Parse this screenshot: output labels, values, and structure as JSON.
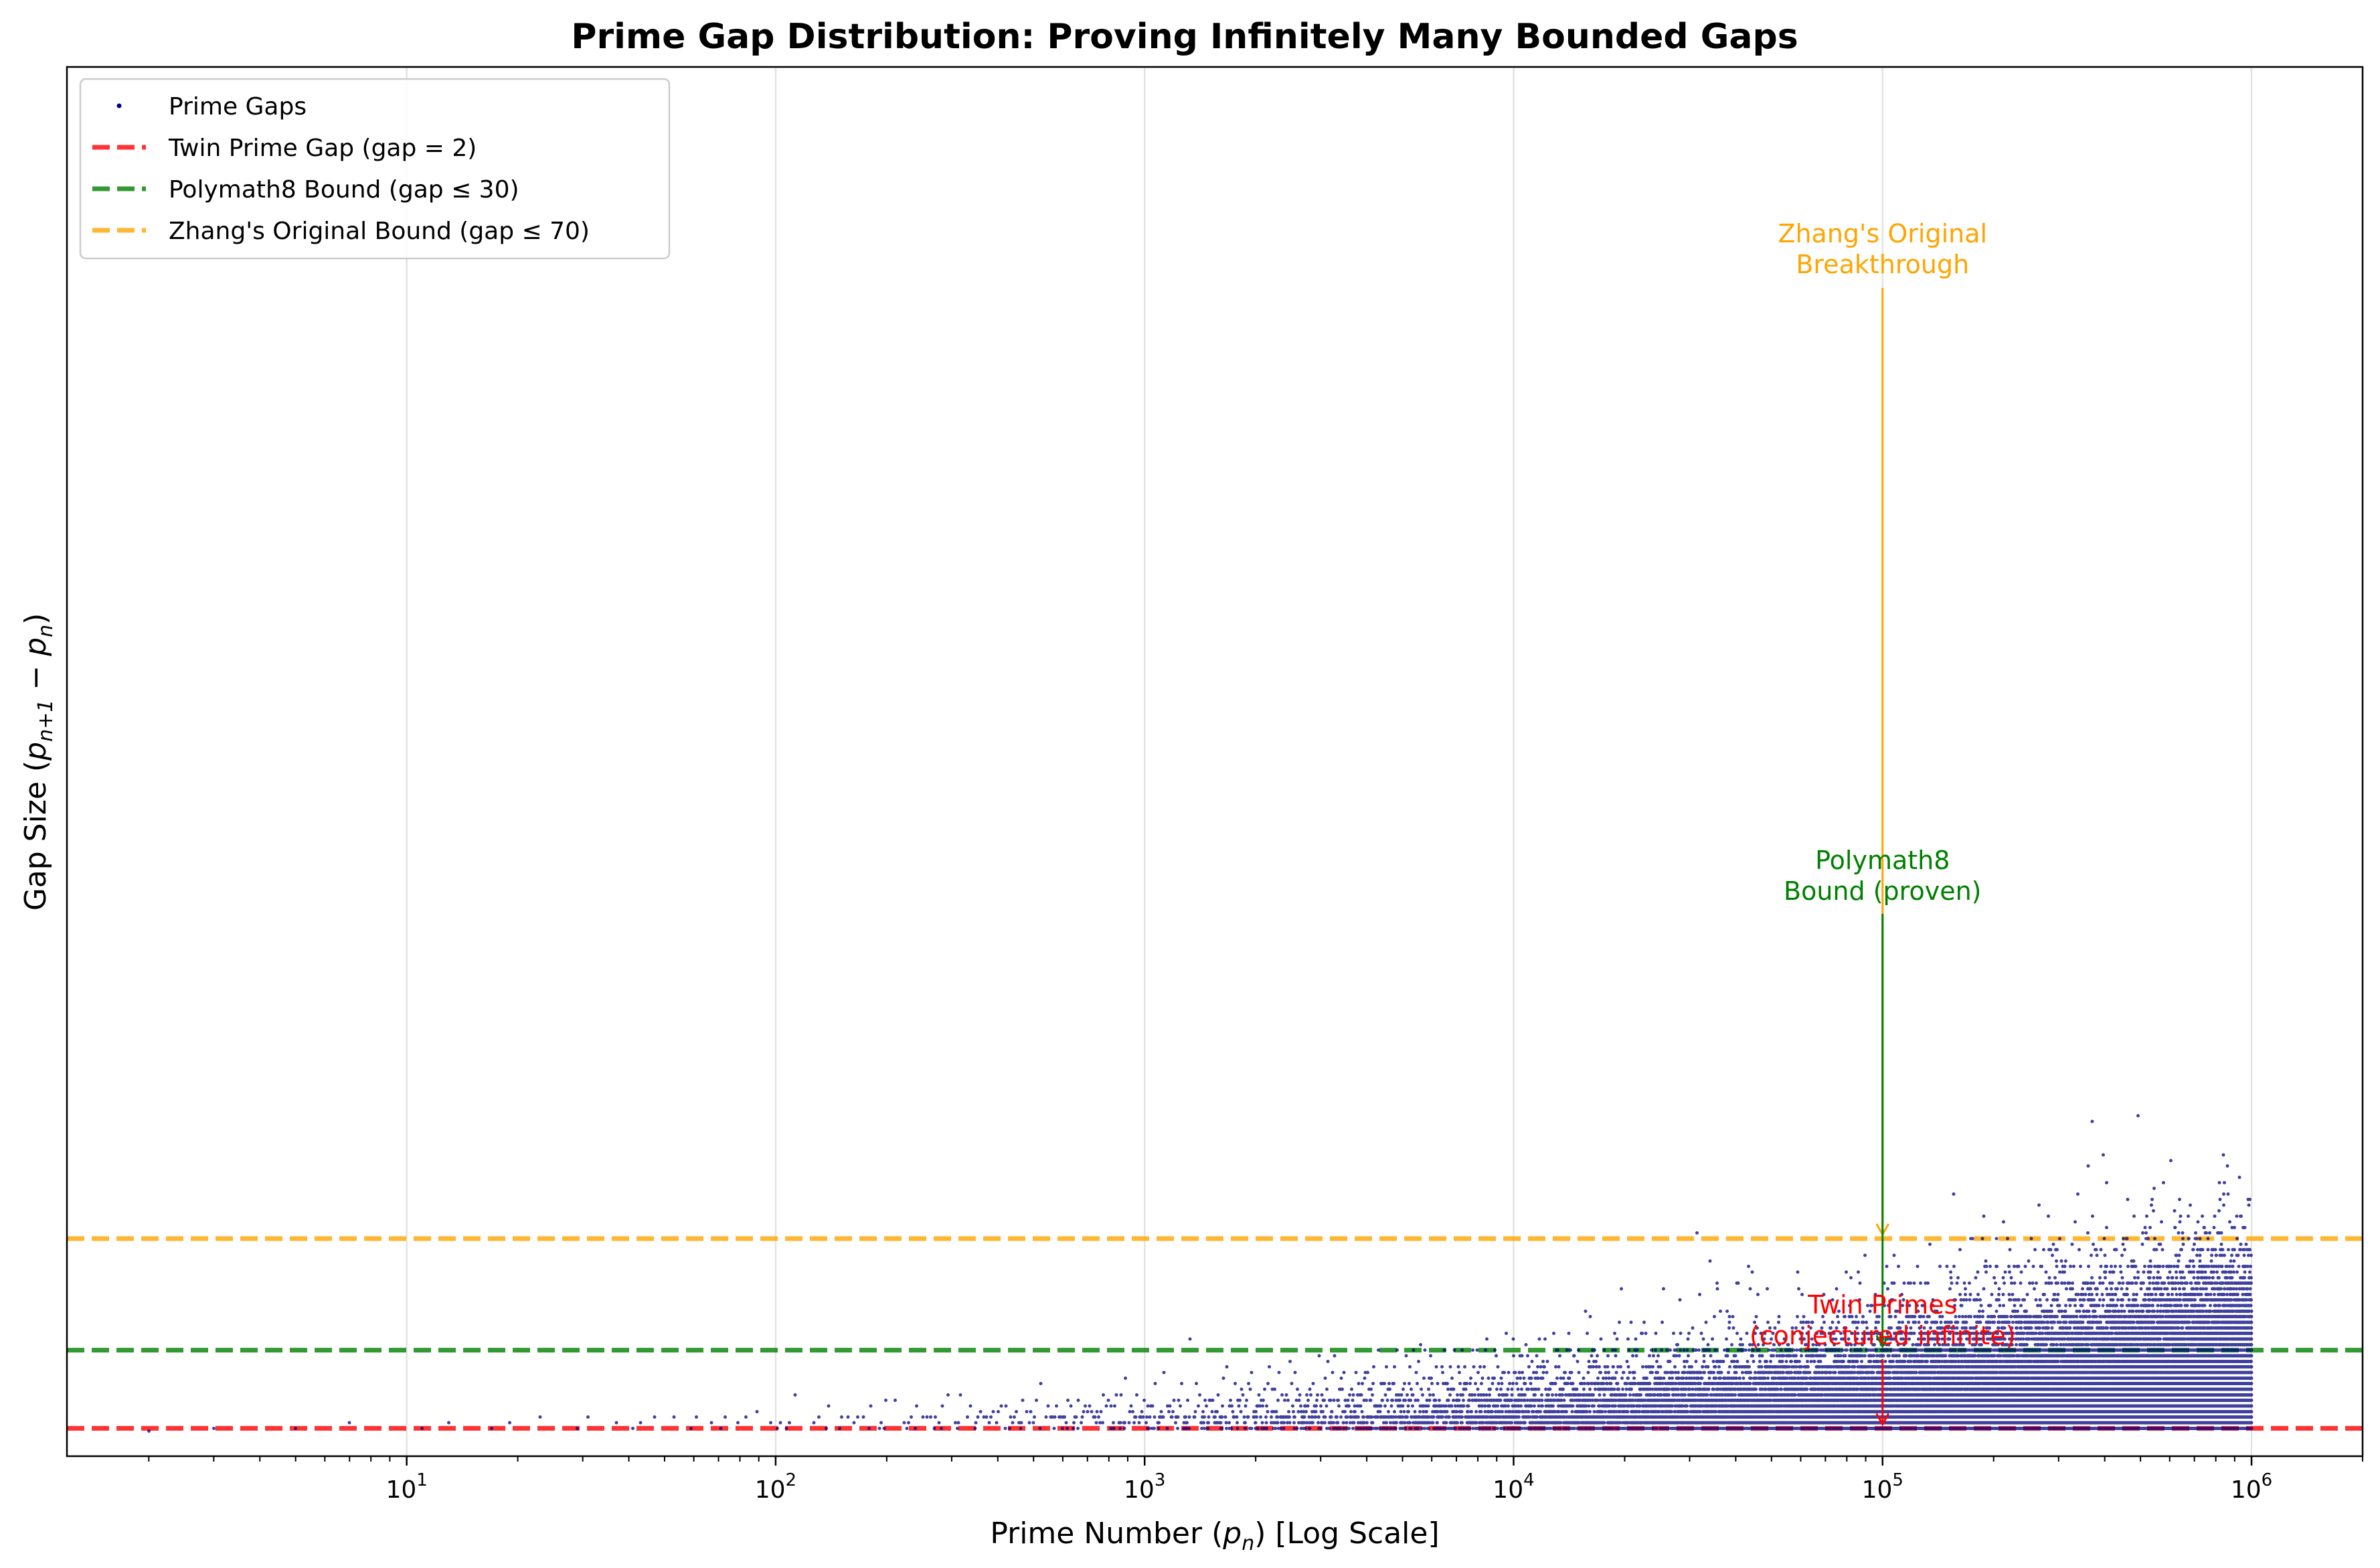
{
  "chart_data": {
    "type": "scatter",
    "title": "Prime Gap Distribution: Proving Infinitely Many Bounded Gaps",
    "xlabel": "Prime Number (p_n) [Log Scale]",
    "ylabel": "Gap Size (p_{n+1} − p_n)",
    "xscale": "log",
    "xlim": [
      1.2,
      2000000
    ],
    "ylim": [
      -8,
      490
    ],
    "x_ticks": [
      10,
      100,
      1000,
      10000,
      100000,
      1000000
    ],
    "x_tick_labels": [
      {
        "base": "10",
        "exp": "1"
      },
      {
        "base": "10",
        "exp": "2"
      },
      {
        "base": "10",
        "exp": "3"
      },
      {
        "base": "10",
        "exp": "4"
      },
      {
        "base": "10",
        "exp": "5"
      },
      {
        "base": "10",
        "exp": "6"
      }
    ],
    "grid": "x-only",
    "legend_position": "top-left",
    "colors": {
      "points": "#00007f",
      "twin": "#ff0000",
      "polymath": "#008000",
      "zhang": "#ffa500"
    },
    "series": [
      {
        "name": "Prime Gaps",
        "kind": "scatter",
        "color": "#00007f",
        "description_points": {
          "x_min": 2,
          "x_max": 1000000,
          "representative": [
            [
              2,
              1
            ],
            [
              3,
              2
            ],
            [
              7,
              4
            ],
            [
              13,
              4
            ],
            [
              23,
              6
            ],
            [
              31,
              6
            ],
            [
              89,
              8
            ],
            [
              113,
              14
            ],
            [
              523,
              18
            ],
            [
              887,
              20
            ],
            [
              1129,
              22
            ],
            [
              1327,
              34
            ],
            [
              9551,
              36
            ],
            [
              15683,
              44
            ],
            [
              19609,
              52
            ],
            [
              31397,
              72
            ],
            [
              155921,
              86
            ],
            [
              360653,
              96
            ],
            [
              370261,
              112
            ],
            [
              492113,
              114
            ],
            [
              1000000,
              100
            ]
          ]
        }
      },
      {
        "name": "Twin Prime Gap (gap = 2)",
        "kind": "hline",
        "y": 2,
        "color": "#ff0000",
        "style": "dashed"
      },
      {
        "name": "Polymath8 Bound (gap ≤ 30)",
        "kind": "hline",
        "y": 30,
        "color": "#008000",
        "style": "dashed"
      },
      {
        "name": "Zhang's Original Bound (gap ≤ 70)",
        "kind": "hline",
        "y": 70,
        "color": "#ffa500",
        "style": "dashed"
      }
    ],
    "annotations": [
      {
        "lines": [
          "Zhang's Original",
          "Breakthrough"
        ],
        "x": 100000,
        "y": 70,
        "color": "#ffa500"
      },
      {
        "lines": [
          "Polymath8",
          "Bound (proven)"
        ],
        "x": 100000,
        "y": 30,
        "color": "#008000"
      },
      {
        "lines": [
          "Twin Primes",
          "(conjectured infinite)"
        ],
        "x": 100000,
        "y": 2,
        "color": "#ff0000"
      }
    ]
  }
}
